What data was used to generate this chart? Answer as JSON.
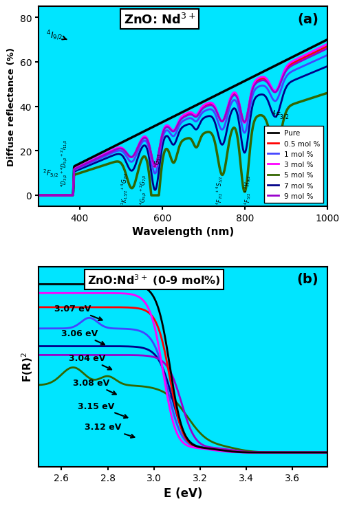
{
  "fig_width": 4.91,
  "fig_height": 7.2,
  "dpi": 100,
  "bg_color": "#00E5FF",
  "panel_a": {
    "title": "ZnO: Nd$^{3+}$",
    "label": "(a)",
    "xlabel": "Wavelength (nm)",
    "ylabel": "Diffuse reflectance (%)",
    "xlim": [
      300,
      1000
    ],
    "ylim": [
      -5,
      85
    ],
    "yticks": [
      0,
      20,
      40,
      60,
      80
    ],
    "xticks": [
      400,
      600,
      800,
      1000
    ],
    "colors": {
      "Pure": "#000000",
      "0.5 mol %": "#FF0000",
      "1 mol %": "#4444FF",
      "3 mol %": "#FF00FF",
      "5 mol %": "#336600",
      "7 mol %": "#000088",
      "9 mol %": "#9900CC"
    }
  },
  "panel_b": {
    "title": "ZnO:Nd$^{3+}$ (0-9 mol%)",
    "label": "(b)",
    "xlabel": "E (eV)",
    "ylabel": "F(R)$^2$",
    "xlim": [
      2.5,
      3.75
    ],
    "ylim": [
      -0.08,
      1.05
    ],
    "xticks": [
      2.6,
      2.8,
      3.0,
      3.2,
      3.4,
      3.6
    ],
    "colors": {
      "Pure": "#000000",
      "0.5 mol %": "#FF0000",
      "1 mol %": "#4444FF",
      "3 mol %": "#FF00FF",
      "5 mol %": "#336600",
      "7 mol %": "#000088",
      "9 mol %": "#9900CC"
    }
  }
}
